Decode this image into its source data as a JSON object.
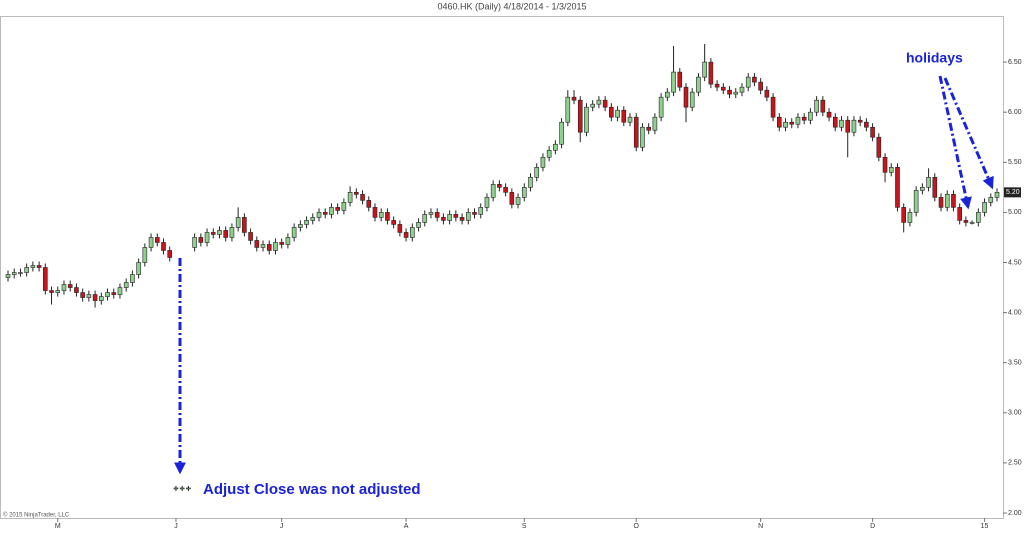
{
  "chart_data": {
    "type": "candlestick",
    "title": "0460.HK (Daily)  4/18/2014 - 1/3/2015",
    "copyright": "© 2015 NinjaTrader, LLC",
    "annotations": [
      "Adjust Close was not adjusted",
      "holidays"
    ],
    "up_color": "#8fd08f",
    "down_color": "#c4161c",
    "ylim": [
      1.95,
      6.95
    ],
    "yticks": [
      {
        "value": 2,
        "label": "2.00"
      },
      {
        "value": 2.5,
        "label": "2.50"
      },
      {
        "value": 3,
        "label": "3.00"
      },
      {
        "value": 3.5,
        "label": "3.50"
      },
      {
        "value": 4,
        "label": "4.00"
      },
      {
        "value": 4.5,
        "label": "4.50"
      },
      {
        "value": 5,
        "label": "5.00"
      },
      {
        "value": 5.5,
        "label": "5.50"
      },
      {
        "value": 6,
        "label": "6.00"
      },
      {
        "value": 6.5,
        "label": "6.50"
      }
    ],
    "last_price": {
      "value": 5.2,
      "label": "5.20"
    },
    "categories": [
      null,
      null,
      null,
      null,
      null,
      null,
      null,
      null,
      "M",
      null,
      null,
      null,
      null,
      null,
      null,
      null,
      null,
      null,
      null,
      null,
      null,
      null,
      null,
      null,
      null,
      null,
      null,
      "J",
      null,
      null,
      null,
      null,
      null,
      null,
      null,
      null,
      null,
      null,
      null,
      null,
      null,
      null,
      null,
      null,
      "J",
      null,
      null,
      null,
      null,
      null,
      null,
      null,
      null,
      null,
      null,
      null,
      null,
      null,
      null,
      null,
      null,
      null,
      null,
      null,
      "A",
      null,
      null,
      null,
      null,
      null,
      null,
      null,
      null,
      null,
      null,
      null,
      null,
      null,
      null,
      null,
      null,
      null,
      null,
      "S",
      null,
      null,
      null,
      null,
      null,
      null,
      null,
      null,
      null,
      null,
      null,
      null,
      null,
      null,
      null,
      null,
      null,
      "O",
      null,
      null,
      null,
      null,
      null,
      null,
      null,
      null,
      null,
      null,
      null,
      null,
      null,
      null,
      null,
      null,
      null,
      null,
      null,
      "N",
      null,
      null,
      null,
      null,
      null,
      null,
      null,
      null,
      null,
      null,
      null,
      null,
      null,
      null,
      null,
      null,
      null,
      "D",
      null,
      null,
      null,
      null,
      null,
      null,
      null,
      null,
      null,
      null,
      null,
      null,
      null,
      null,
      null,
      null,
      null,
      "15",
      null,
      null
    ],
    "open": [
      4.35,
      4.38,
      4.4,
      4.4,
      4.45,
      4.47,
      4.45,
      4.22,
      4.2,
      4.22,
      4.28,
      4.25,
      4.2,
      4.15,
      4.18,
      4.12,
      4.16,
      4.2,
      4.18,
      4.25,
      4.3,
      4.38,
      4.5,
      4.65,
      4.75,
      4.7,
      4.62,
      2.24,
      2.25,
      2.25,
      4.65,
      4.75,
      4.7,
      4.8,
      4.78,
      4.82,
      4.75,
      4.85,
      4.95,
      4.8,
      4.72,
      4.65,
      4.68,
      4.62,
      4.7,
      4.68,
      4.75,
      4.85,
      4.88,
      4.92,
      4.95,
      5.0,
      4.98,
      5.05,
      5.02,
      5.1,
      5.2,
      5.18,
      5.12,
      5.05,
      4.95,
      5.0,
      4.92,
      4.88,
      4.8,
      4.75,
      4.85,
      4.9,
      4.98,
      5.0,
      4.95,
      4.92,
      4.98,
      4.95,
      4.92,
      5.0,
      4.98,
      5.05,
      5.15,
      5.28,
      5.25,
      5.2,
      5.08,
      5.15,
      5.25,
      5.35,
      5.45,
      5.55,
      5.62,
      5.68,
      5.9,
      6.15,
      6.12,
      5.8,
      6.05,
      6.08,
      6.12,
      6.05,
      5.95,
      6.02,
      5.9,
      5.95,
      5.65,
      5.85,
      5.82,
      5.95,
      6.15,
      6.2,
      6.4,
      6.25,
      6.05,
      6.2,
      6.35,
      6.5,
      6.28,
      6.25,
      6.22,
      6.18,
      6.2,
      6.25,
      6.35,
      6.3,
      6.22,
      6.15,
      5.95,
      5.85,
      5.9,
      5.88,
      5.95,
      5.92,
      6.0,
      6.12,
      6.0,
      5.95,
      5.85,
      5.92,
      5.8,
      5.92,
      5.9,
      5.85,
      5.75,
      5.55,
      5.4,
      5.45,
      5.05,
      4.9,
      5.0,
      5.22,
      5.25,
      5.35,
      5.15,
      5.05,
      5.18,
      5.05,
      4.92,
      4.9,
      4.9,
      5.0,
      5.1,
      5.15
    ],
    "high": [
      4.42,
      4.44,
      4.44,
      4.49,
      4.51,
      4.51,
      4.49,
      4.26,
      4.26,
      4.32,
      4.32,
      4.29,
      4.24,
      4.22,
      4.22,
      4.2,
      4.24,
      4.24,
      4.29,
      4.34,
      4.42,
      4.54,
      4.69,
      4.79,
      4.79,
      4.74,
      4.66,
      2.27,
      2.27,
      2.27,
      4.79,
      4.79,
      4.84,
      4.84,
      4.86,
      4.86,
      4.89,
      5.05,
      4.99,
      4.84,
      4.76,
      4.72,
      4.72,
      4.74,
      4.74,
      4.79,
      4.89,
      4.92,
      4.96,
      4.99,
      5.04,
      5.04,
      5.09,
      5.09,
      5.14,
      5.26,
      5.24,
      5.22,
      5.16,
      5.09,
      5.04,
      5.04,
      4.96,
      4.92,
      4.84,
      4.89,
      4.94,
      5.02,
      5.04,
      5.04,
      4.99,
      5.02,
      5.02,
      4.99,
      5.04,
      5.04,
      5.09,
      5.19,
      5.32,
      5.32,
      5.29,
      5.24,
      5.19,
      5.29,
      5.39,
      5.49,
      5.59,
      5.66,
      5.72,
      5.94,
      6.22,
      6.22,
      6.16,
      6.09,
      6.12,
      6.16,
      6.16,
      6.09,
      6.06,
      6.06,
      5.99,
      5.99,
      5.89,
      5.89,
      5.99,
      6.19,
      6.24,
      6.66,
      6.44,
      6.29,
      6.24,
      6.39,
      6.68,
      6.54,
      6.32,
      6.29,
      6.26,
      6.24,
      6.29,
      6.39,
      6.39,
      6.34,
      6.26,
      6.19,
      5.99,
      5.94,
      5.94,
      5.99,
      5.99,
      6.04,
      6.16,
      6.16,
      6.04,
      5.99,
      5.96,
      5.96,
      5.96,
      5.96,
      5.94,
      5.89,
      5.79,
      5.59,
      5.49,
      5.49,
      5.09,
      5.04,
      5.26,
      5.29,
      5.44,
      5.39,
      5.19,
      5.22,
      5.22,
      5.09,
      4.96,
      4.92,
      5.04,
      5.14,
      5.19,
      5.24
    ],
    "low": [
      4.31,
      4.34,
      4.36,
      4.36,
      4.41,
      4.41,
      4.18,
      4.08,
      4.16,
      4.18,
      4.21,
      4.16,
      4.11,
      4.11,
      4.05,
      4.08,
      4.12,
      4.14,
      4.14,
      4.21,
      4.26,
      4.34,
      4.46,
      4.61,
      4.66,
      4.58,
      4.51,
      2.22,
      2.22,
      2.22,
      4.61,
      4.66,
      4.66,
      4.74,
      4.74,
      4.71,
      4.71,
      4.81,
      4.76,
      4.68,
      4.61,
      4.61,
      4.58,
      4.58,
      4.64,
      4.64,
      4.71,
      4.81,
      4.84,
      4.88,
      4.91,
      4.94,
      4.94,
      4.98,
      4.98,
      5.06,
      5.14,
      5.08,
      5.01,
      4.91,
      4.91,
      4.88,
      4.84,
      4.76,
      4.71,
      4.71,
      4.81,
      4.86,
      4.94,
      4.91,
      4.88,
      4.88,
      4.91,
      4.88,
      4.88,
      4.94,
      4.94,
      5.01,
      5.11,
      5.21,
      5.16,
      5.04,
      5.04,
      5.11,
      5.21,
      5.31,
      5.41,
      5.51,
      5.58,
      5.64,
      5.86,
      6.08,
      5.7,
      5.76,
      6.01,
      6.04,
      6.01,
      5.91,
      5.91,
      5.86,
      5.86,
      5.61,
      5.61,
      5.78,
      5.78,
      5.91,
      6.11,
      6.16,
      6.21,
      5.9,
      6.01,
      6.16,
      6.31,
      6.24,
      6.21,
      6.18,
      6.14,
      6.14,
      6.16,
      6.21,
      6.26,
      6.18,
      6.11,
      5.91,
      5.81,
      5.81,
      5.84,
      5.84,
      5.88,
      5.88,
      5.96,
      5.96,
      5.91,
      5.81,
      5.81,
      5.55,
      5.76,
      5.86,
      5.81,
      5.71,
      5.51,
      5.3,
      5.36,
      5.01,
      4.8,
      4.86,
      4.96,
      5.18,
      5.21,
      5.11,
      5.01,
      5.01,
      5.01,
      4.88,
      4.86,
      4.88,
      4.86,
      4.96,
      5.06,
      5.11
    ],
    "close": [
      4.38,
      4.4,
      4.4,
      4.45,
      4.47,
      4.45,
      4.22,
      4.2,
      4.22,
      4.28,
      4.25,
      4.2,
      4.15,
      4.18,
      4.12,
      4.16,
      4.2,
      4.18,
      4.25,
      4.3,
      4.38,
      4.5,
      4.65,
      4.75,
      4.7,
      4.62,
      4.55,
      2.25,
      2.25,
      2.25,
      4.75,
      4.7,
      4.8,
      4.78,
      4.82,
      4.75,
      4.85,
      4.95,
      4.8,
      4.72,
      4.65,
      4.68,
      4.62,
      4.7,
      4.68,
      4.75,
      4.85,
      4.88,
      4.92,
      4.95,
      5.0,
      4.98,
      5.05,
      5.02,
      5.1,
      5.2,
      5.18,
      5.12,
      5.05,
      4.95,
      5.0,
      4.92,
      4.88,
      4.8,
      4.75,
      4.85,
      4.9,
      4.98,
      5.0,
      4.95,
      4.92,
      4.98,
      4.95,
      4.92,
      5.0,
      4.98,
      5.05,
      5.15,
      5.28,
      5.25,
      5.2,
      5.08,
      5.15,
      5.25,
      5.35,
      5.45,
      5.55,
      5.62,
      5.68,
      5.9,
      6.15,
      6.12,
      5.8,
      6.05,
      6.08,
      6.12,
      6.05,
      5.95,
      6.02,
      5.9,
      5.95,
      5.65,
      5.85,
      5.82,
      5.95,
      6.15,
      6.2,
      6.4,
      6.25,
      6.05,
      6.2,
      6.35,
      6.5,
      6.28,
      6.25,
      6.22,
      6.18,
      6.2,
      6.25,
      6.35,
      6.3,
      6.22,
      6.15,
      5.95,
      5.85,
      5.9,
      5.88,
      5.95,
      5.92,
      6.0,
      6.12,
      6.0,
      5.95,
      5.85,
      5.92,
      5.8,
      5.92,
      5.9,
      5.85,
      5.75,
      5.55,
      5.4,
      5.45,
      5.05,
      4.9,
      5.0,
      5.22,
      5.25,
      5.35,
      5.15,
      5.05,
      5.18,
      5.05,
      4.92,
      4.9,
      4.9,
      5.0,
      5.1,
      5.15,
      5.2
    ]
  }
}
